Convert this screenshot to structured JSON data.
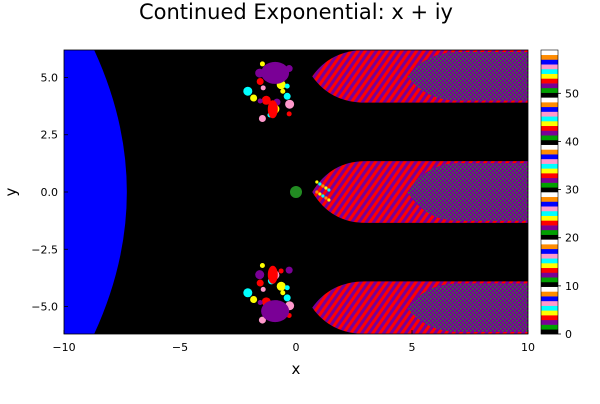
{
  "chart_data": {
    "type": "heatmap",
    "title": "Continued Exponential: x + iy",
    "xlabel": "x",
    "ylabel": "y",
    "xlim": [
      -10,
      10
    ],
    "ylim": [
      -6.2,
      6.2
    ],
    "xticks": [
      {
        "value": -10,
        "label": "−10"
      },
      {
        "value": -5,
        "label": "−5"
      },
      {
        "value": 0,
        "label": "0"
      },
      {
        "value": 5,
        "label": "5"
      },
      {
        "value": 10,
        "label": "10"
      }
    ],
    "yticks": [
      {
        "value": -5,
        "label": "−5.0"
      },
      {
        "value": -2.5,
        "label": "−2.5"
      },
      {
        "value": 0,
        "label": "0.0"
      },
      {
        "value": 2.5,
        "label": "2.5"
      },
      {
        "value": 5,
        "label": "5.0"
      }
    ],
    "colorbar": {
      "range": [
        0,
        59
      ],
      "ticks": [
        {
          "value": 0,
          "label": "0"
        },
        {
          "value": 10,
          "label": "10"
        },
        {
          "value": 20,
          "label": "20"
        },
        {
          "value": 30,
          "label": "30"
        },
        {
          "value": 40,
          "label": "40"
        },
        {
          "value": 50,
          "label": "50"
        }
      ],
      "palette": [
        "#000000",
        "#00a000",
        "#7a0096",
        "#ff0000",
        "#ffff00",
        "#00ffff",
        "#ff99cc",
        "#0000ff",
        "#ff8c00",
        "#ffffff"
      ]
    },
    "region_colors": {
      "diverging": "#0000ff",
      "converged": "#000000",
      "fixed_point": "#228b22",
      "fringe_a": "#7a0096",
      "fringe_b": "#ff0000",
      "fringe_c": "#ffff00",
      "fringe_d": "#00ffff",
      "speckle": "#2e7d32"
    },
    "grid": false,
    "legend": "colorbar-right"
  }
}
